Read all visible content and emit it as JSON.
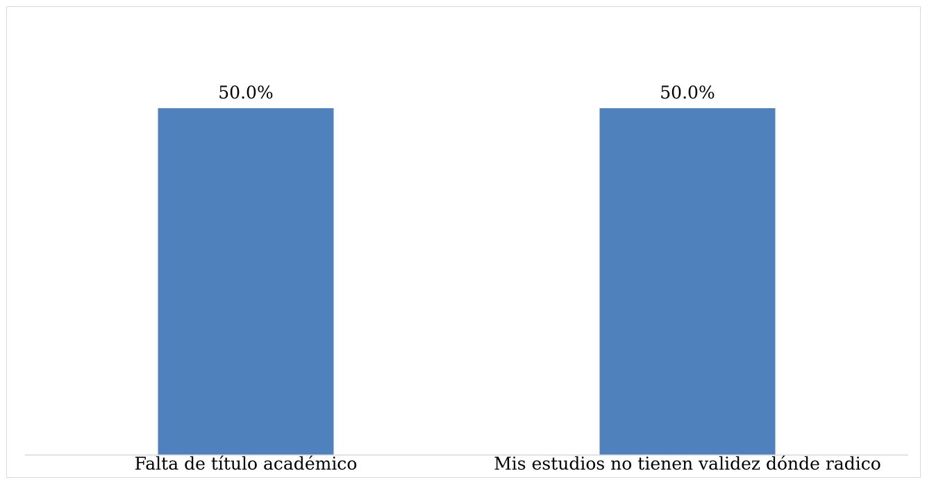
{
  "chart_data": {
    "type": "bar",
    "categories": [
      "Falta de título académico",
      "Mis estudios no tienen validez dónde radico"
    ],
    "values": [
      50.0,
      50.0
    ],
    "data_labels": [
      "50.0%",
      "50.0%"
    ],
    "title": "",
    "xlabel": "",
    "ylabel": "",
    "ylim": [
      0,
      60
    ],
    "grid": false,
    "legend": "none",
    "colors": {
      "bar": "#4f81bd",
      "axis": "#d9d9d9",
      "border": "#d9d9d9"
    }
  }
}
